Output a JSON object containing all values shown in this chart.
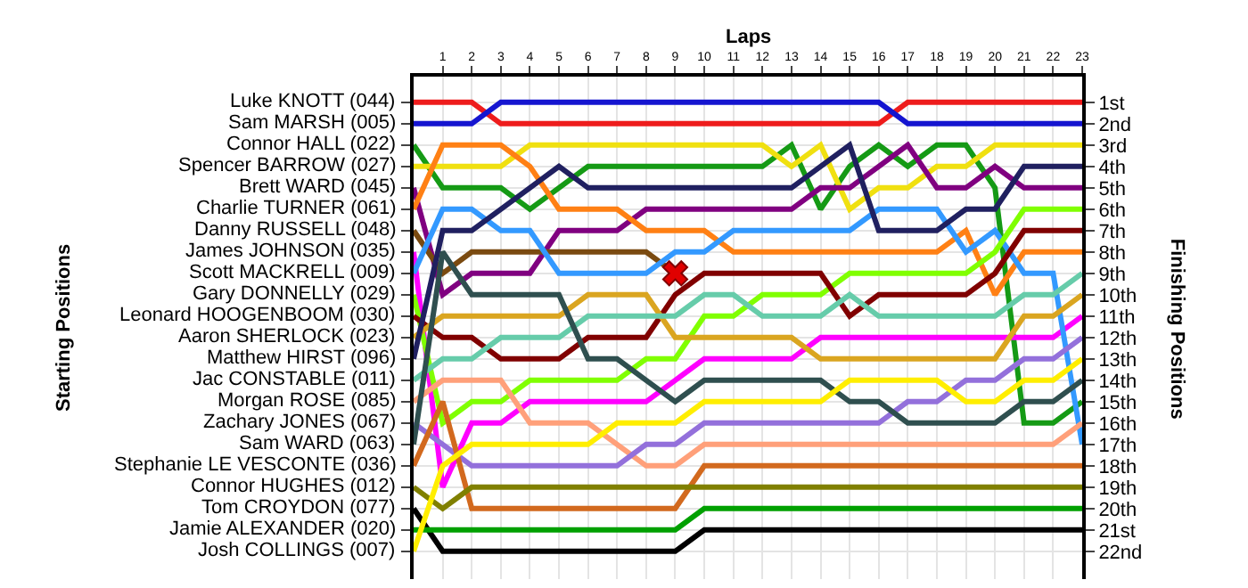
{
  "chart_data": {
    "type": "line",
    "xlabel": "Laps",
    "ylabel": "Finishing Positions",
    "annotations": [
      "Starting Positions"
    ],
    "x": [
      0,
      1,
      2,
      3,
      4,
      5,
      6,
      7,
      8,
      9,
      10,
      11,
      12,
      13,
      14,
      15,
      16,
      17,
      18,
      19,
      20,
      21,
      22,
      23
    ],
    "xlim": [
      0,
      23
    ],
    "xticks": [
      1,
      2,
      3,
      4,
      5,
      6,
      7,
      8,
      9,
      10,
      11,
      12,
      13,
      14,
      15,
      16,
      17,
      18,
      19,
      20,
      21,
      22,
      23
    ],
    "ylim": [
      23.3,
      -0.2
    ],
    "yticks": [
      {
        "value": 1,
        "label": "1st"
      },
      {
        "value": 2,
        "label": "2nd"
      },
      {
        "value": 3,
        "label": "3rd"
      },
      {
        "value": 4,
        "label": "4th"
      },
      {
        "value": 5,
        "label": "5th"
      },
      {
        "value": 6,
        "label": "6th"
      },
      {
        "value": 7,
        "label": "7th"
      },
      {
        "value": 8,
        "label": "8th"
      },
      {
        "value": 9,
        "label": "9th"
      },
      {
        "value": 10,
        "label": "10th"
      },
      {
        "value": 11,
        "label": "11th"
      },
      {
        "value": 12,
        "label": "12th"
      },
      {
        "value": 13,
        "label": "13th"
      },
      {
        "value": 14,
        "label": "14th"
      },
      {
        "value": 15,
        "label": "15th"
      },
      {
        "value": 16,
        "label": "16th"
      },
      {
        "value": 17,
        "label": "17th"
      },
      {
        "value": 18,
        "label": "18th"
      },
      {
        "value": 19,
        "label": "19th"
      },
      {
        "value": 20,
        "label": "20th"
      },
      {
        "value": 21,
        "label": "21st"
      },
      {
        "value": 22,
        "label": "22nd"
      }
    ],
    "grid": true,
    "marker": "none",
    "series": [
      {
        "name": "Luke KNOTT (044)",
        "color": "#ee1c1c",
        "values": [
          1,
          1,
          1,
          2,
          2,
          2,
          2,
          2,
          2,
          2,
          2,
          2,
          2,
          2,
          2,
          2,
          2,
          1,
          1,
          1,
          1,
          1,
          1,
          1
        ]
      },
      {
        "name": "Sam MARSH (005)",
        "color": "#1515d0",
        "values": [
          2,
          2,
          2,
          1,
          1,
          1,
          1,
          1,
          1,
          1,
          1,
          1,
          1,
          1,
          1,
          1,
          1,
          2,
          2,
          2,
          2,
          2,
          2,
          2
        ]
      },
      {
        "name": "Connor HALL (022)",
        "color": "#159a15",
        "values": [
          3,
          5,
          5,
          5,
          6,
          5,
          4,
          4,
          4,
          4,
          4,
          4,
          4,
          3,
          6,
          4,
          3,
          4,
          3,
          3,
          5,
          16,
          16,
          15
        ]
      },
      {
        "name": "Spencer BARROW (027)",
        "color": "#f0e010",
        "values": [
          4,
          4,
          4,
          4,
          3,
          3,
          3,
          3,
          3,
          3,
          3,
          3,
          3,
          4,
          3,
          6,
          5,
          5,
          4,
          4,
          3,
          3,
          3,
          3
        ]
      },
      {
        "name": "Brett WARD (045)",
        "color": "#800080",
        "values": [
          5,
          10,
          9,
          9,
          9,
          7,
          7,
          7,
          6,
          6,
          6,
          6,
          6,
          6,
          5,
          5,
          4,
          3,
          5,
          5,
          4,
          5,
          5,
          5
        ]
      },
      {
        "name": "Charlie TURNER (061)",
        "color": "#ff8014",
        "values": [
          6,
          3,
          3,
          3,
          4,
          6,
          6,
          6,
          7,
          7,
          7,
          8,
          8,
          8,
          8,
          8,
          8,
          8,
          8,
          7,
          10,
          8,
          8,
          8
        ]
      },
      {
        "name": "Danny RUSSELL (048)",
        "color": "#7a4a10",
        "values": [
          7,
          9,
          8,
          8,
          8,
          8,
          8,
          8,
          8,
          9,
          null,
          null,
          null,
          null,
          null,
          null,
          null,
          null,
          null,
          null,
          null,
          null,
          null,
          null
        ]
      },
      {
        "name": "James JOHNSON (035)",
        "color": "#ff00ff",
        "values": [
          8,
          19,
          16,
          16,
          15,
          15,
          15,
          15,
          15,
          14,
          13,
          13,
          13,
          13,
          12,
          12,
          12,
          12,
          12,
          12,
          12,
          12,
          12,
          11
        ]
      },
      {
        "name": "Scott MACKRELL (009)",
        "color": "#3399ff",
        "values": [
          9,
          6,
          6,
          7,
          7,
          9,
          9,
          9,
          9,
          8,
          8,
          7,
          7,
          7,
          7,
          7,
          6,
          6,
          6,
          8,
          7,
          9,
          9,
          17
        ]
      },
      {
        "name": "Gary DONNELLY (029)",
        "color": "#80ff00",
        "values": [
          10,
          16,
          15,
          15,
          14,
          14,
          14,
          14,
          13,
          13,
          11,
          11,
          10,
          10,
          10,
          9,
          9,
          9,
          9,
          9,
          8,
          6,
          6,
          6
        ]
      },
      {
        "name": "Leonard HOOGENBOOM (030)",
        "color": "#800000",
        "values": [
          11,
          12,
          12,
          13,
          13,
          13,
          12,
          12,
          12,
          10,
          9,
          9,
          9,
          9,
          9,
          11,
          10,
          10,
          10,
          10,
          9,
          7,
          7,
          7
        ]
      },
      {
        "name": "Aaron SHERLOCK (023)",
        "color": "#daa520",
        "values": [
          12,
          11,
          11,
          11,
          11,
          11,
          10,
          10,
          10,
          12,
          12,
          12,
          12,
          12,
          13,
          13,
          13,
          13,
          13,
          13,
          13,
          11,
          11,
          10
        ]
      },
      {
        "name": "Matthew HIRST (096)",
        "color": "#202060",
        "values": [
          13,
          7,
          7,
          6,
          5,
          4,
          5,
          5,
          5,
          5,
          5,
          5,
          5,
          5,
          4,
          3,
          7,
          7,
          7,
          6,
          6,
          4,
          4,
          4
        ]
      },
      {
        "name": "Jac CONSTABLE (011)",
        "color": "#66ccaa",
        "values": [
          14,
          13,
          13,
          12,
          12,
          12,
          11,
          11,
          11,
          11,
          10,
          10,
          11,
          11,
          11,
          10,
          11,
          11,
          11,
          11,
          11,
          10,
          10,
          9
        ]
      },
      {
        "name": "Morgan ROSE (085)",
        "color": "#ffa07a",
        "values": [
          15,
          14,
          14,
          14,
          16,
          16,
          16,
          17,
          18,
          18,
          17,
          17,
          17,
          17,
          17,
          17,
          17,
          17,
          17,
          17,
          17,
          17,
          17,
          16
        ]
      },
      {
        "name": "Zachary JONES (067)",
        "color": "#9370db",
        "values": [
          16,
          17,
          18,
          18,
          18,
          18,
          18,
          18,
          17,
          17,
          16,
          16,
          16,
          16,
          16,
          16,
          16,
          15,
          15,
          14,
          14,
          13,
          13,
          12
        ]
      },
      {
        "name": "Sam WARD (063)",
        "color": "#2f4f4f",
        "values": [
          17,
          8,
          10,
          10,
          10,
          10,
          13,
          13,
          14,
          15,
          14,
          14,
          14,
          14,
          14,
          15,
          15,
          16,
          16,
          16,
          16,
          15,
          15,
          14
        ]
      },
      {
        "name": "Stephanie LE VESCONTE (036)",
        "color": "#d2691e",
        "values": [
          18,
          15,
          20,
          20,
          20,
          20,
          20,
          20,
          20,
          20,
          18,
          18,
          18,
          18,
          18,
          18,
          18,
          18,
          18,
          18,
          18,
          18,
          18,
          18
        ]
      },
      {
        "name": "Connor HUGHES (012)",
        "color": "#808000",
        "values": [
          19,
          20,
          19,
          19,
          19,
          19,
          19,
          19,
          19,
          19,
          19,
          19,
          19,
          19,
          19,
          19,
          19,
          19,
          19,
          19,
          19,
          19,
          19,
          19
        ]
      },
      {
        "name": "Tom CROYDON (077)",
        "color": "#000000",
        "values": [
          20,
          22,
          22,
          22,
          22,
          22,
          22,
          22,
          22,
          22,
          21,
          21,
          21,
          21,
          21,
          21,
          21,
          21,
          21,
          21,
          21,
          21,
          21,
          21
        ]
      },
      {
        "name": "Jamie ALEXANDER (020)",
        "color": "#00a000",
        "values": [
          21,
          21,
          21,
          21,
          21,
          21,
          21,
          21,
          21,
          21,
          20,
          20,
          20,
          20,
          20,
          20,
          20,
          20,
          20,
          20,
          20,
          20,
          20,
          20
        ]
      },
      {
        "name": "Josh COLLINGS (007)",
        "color": "#ffee00",
        "values": [
          22,
          18,
          17,
          17,
          17,
          17,
          17,
          16,
          16,
          16,
          15,
          15,
          15,
          15,
          15,
          14,
          14,
          14,
          14,
          15,
          15,
          14,
          14,
          13
        ]
      },
      {
        "type": "scatter",
        "marker": "cross",
        "color": "#e00000",
        "x": [
          9
        ],
        "values": [
          9
        ]
      }
    ]
  }
}
